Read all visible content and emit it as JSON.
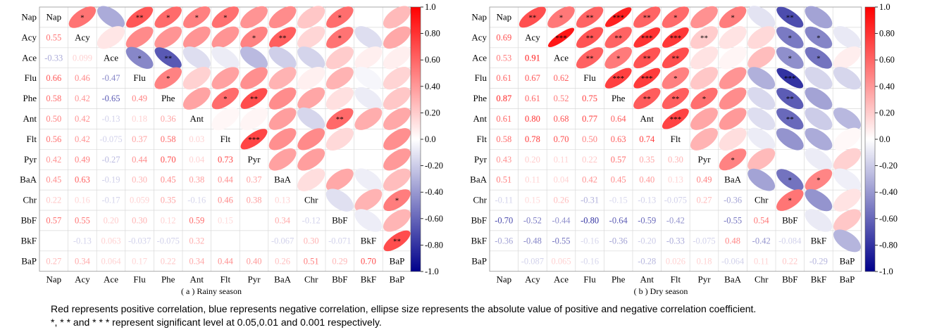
{
  "chart_data": [
    {
      "type": "heatmap",
      "subtype": "correlation-ellipse",
      "caption": "( a )  Rainy season",
      "variables": [
        "Nap",
        "Acy",
        "Ace",
        "Flu",
        "Phe",
        "Ant",
        "Flt",
        "Pyr",
        "BaA",
        "Chr",
        "BbF",
        "BkF",
        "BaP"
      ],
      "lower_values": [
        [
          null,
          null,
          null,
          null,
          null,
          null,
          null,
          null,
          null,
          null,
          null,
          null
        ],
        [
          0.55,
          null,
          null,
          null,
          null,
          null,
          null,
          null,
          null,
          null,
          null,
          null
        ],
        [
          -0.33,
          0.099,
          null,
          null,
          null,
          null,
          null,
          null,
          null,
          null,
          null,
          null
        ],
        [
          0.66,
          0.46,
          -0.47,
          null,
          null,
          null,
          null,
          null,
          null,
          null,
          null,
          null
        ],
        [
          0.58,
          0.42,
          -0.65,
          0.49,
          null,
          null,
          null,
          null,
          null,
          null,
          null,
          null
        ],
        [
          0.5,
          0.42,
          -0.13,
          0.18,
          0.36,
          null,
          null,
          null,
          null,
          null,
          null,
          null
        ],
        [
          0.56,
          0.42,
          -0.075,
          0.37,
          0.58,
          0.03,
          null,
          null,
          null,
          null,
          null,
          null
        ],
        [
          0.42,
          0.49,
          -0.27,
          0.44,
          0.7,
          0.04,
          0.73,
          null,
          null,
          null,
          null,
          null
        ],
        [
          0.45,
          0.63,
          -0.19,
          0.3,
          0.45,
          0.38,
          0.44,
          0.37,
          null,
          null,
          null,
          null
        ],
        [
          0.22,
          0.16,
          -0.17,
          0.059,
          0.35,
          -0.16,
          0.46,
          0.38,
          0.13,
          null,
          null,
          null
        ],
        [
          0.57,
          0.55,
          0.2,
          0.3,
          0.12,
          0.59,
          0.15,
          null,
          0.34,
          -0.12,
          null,
          null
        ],
        [
          null,
          -0.13,
          0.063,
          -0.037,
          -0.075,
          0.32,
          null,
          null,
          -0.067,
          0.3,
          -0.071,
          null
        ],
        [
          0.27,
          0.34,
          0.064,
          0.17,
          0.22,
          0.34,
          0.44,
          0.4,
          0.26,
          0.51,
          0.29,
          0.7
        ]
      ],
      "lower_labels": [
        [],
        [
          "0.55"
        ],
        [
          "-0.33",
          "0.099"
        ],
        [
          "0.66",
          "0.46",
          "-0.47"
        ],
        [
          "0.58",
          "0.42",
          "-0.65",
          "0.49"
        ],
        [
          "0.50",
          "0.42",
          "-0.13",
          "0.18",
          "0.36"
        ],
        [
          "0.56",
          "0.42",
          "-0.075",
          "0.37",
          "0.58",
          "0.03"
        ],
        [
          "0.42",
          "0.49",
          "-0.27",
          "0.44",
          "0.70",
          "0.04",
          "0.73"
        ],
        [
          "0.45",
          "0.63",
          "-0.19",
          "0.30",
          "0.45",
          "0.38",
          "0.44",
          "0.37"
        ],
        [
          "0.22",
          "0.16",
          "-0.17",
          "0.059",
          "0.35",
          "-0.16",
          "0.46",
          "0.38",
          "0.13"
        ],
        [
          "0.57",
          "0.55",
          "0.20",
          "0.30",
          "0.12",
          "0.59",
          "0.15",
          "",
          "0.34",
          "-0.12"
        ],
        [
          "",
          "-0.13",
          "0.063",
          "-0.037",
          "-0.075",
          "0.32",
          "",
          "",
          "-0.067",
          "0.30",
          "-0.071"
        ],
        [
          "0.27",
          "0.34",
          "0.064",
          "0.17",
          "0.22",
          "0.34",
          "0.44",
          "0.40",
          "0.26",
          "0.51",
          "0.29",
          "0.70"
        ]
      ],
      "stars": [
        {
          "r": 0,
          "c": 1,
          "s": "*"
        },
        {
          "r": 0,
          "c": 3,
          "s": "**"
        },
        {
          "r": 0,
          "c": 4,
          "s": "*"
        },
        {
          "r": 0,
          "c": 5,
          "s": "*"
        },
        {
          "r": 0,
          "c": 6,
          "s": "*"
        },
        {
          "r": 0,
          "c": 10,
          "s": "*"
        },
        {
          "r": 1,
          "c": 7,
          "s": "*"
        },
        {
          "r": 1,
          "c": 8,
          "s": "**"
        },
        {
          "r": 1,
          "c": 10,
          "s": "*"
        },
        {
          "r": 2,
          "c": 3,
          "s": "*"
        },
        {
          "r": 2,
          "c": 4,
          "s": "**"
        },
        {
          "r": 3,
          "c": 4,
          "s": "*"
        },
        {
          "r": 4,
          "c": 6,
          "s": "*"
        },
        {
          "r": 4,
          "c": 7,
          "s": "**"
        },
        {
          "r": 5,
          "c": 10,
          "s": "**"
        },
        {
          "r": 6,
          "c": 7,
          "s": "***"
        },
        {
          "r": 9,
          "c": 12,
          "s": "*"
        },
        {
          "r": 11,
          "c": 12,
          "s": "**"
        }
      ]
    },
    {
      "type": "heatmap",
      "subtype": "correlation-ellipse",
      "caption": "( b )  Dry season",
      "variables": [
        "Nap",
        "Acy",
        "Ace",
        "Flu",
        "Phe",
        "Ant",
        "Flt",
        "Pyr",
        "BaA",
        "Chr",
        "BbF",
        "BkF",
        "BaP"
      ],
      "lower_values": [
        [
          null,
          null,
          null,
          null,
          null,
          null,
          null,
          null,
          null,
          null,
          null,
          null
        ],
        [
          0.69,
          null,
          null,
          null,
          null,
          null,
          null,
          null,
          null,
          null,
          null,
          null
        ],
        [
          0.53,
          0.91,
          null,
          null,
          null,
          null,
          null,
          null,
          null,
          null,
          null,
          null
        ],
        [
          0.61,
          0.67,
          0.62,
          null,
          null,
          null,
          null,
          null,
          null,
          null,
          null,
          null
        ],
        [
          0.87,
          0.61,
          0.52,
          0.75,
          null,
          null,
          null,
          null,
          null,
          null,
          null,
          null
        ],
        [
          0.61,
          0.8,
          0.68,
          0.77,
          0.64,
          null,
          null,
          null,
          null,
          null,
          null,
          null
        ],
        [
          0.58,
          0.78,
          0.7,
          0.5,
          0.63,
          0.74,
          null,
          null,
          null,
          null,
          null,
          null
        ],
        [
          0.43,
          0.2,
          0.11,
          0.22,
          0.57,
          0.35,
          0.3,
          null,
          null,
          null,
          null,
          null
        ],
        [
          0.51,
          0.11,
          0.04,
          0.42,
          0.45,
          0.4,
          0.13,
          0.49,
          null,
          null,
          null,
          null
        ],
        [
          -0.11,
          0.15,
          0.26,
          -0.31,
          -0.15,
          -0.13,
          -0.075,
          0.27,
          -0.36,
          null,
          null,
          null
        ],
        [
          -0.7,
          -0.52,
          -0.44,
          -0.8,
          -0.64,
          -0.59,
          -0.42,
          null,
          -0.55,
          0.54,
          null,
          null
        ],
        [
          -0.36,
          -0.48,
          -0.55,
          -0.16,
          -0.36,
          -0.2,
          -0.33,
          -0.075,
          0.48,
          -0.42,
          -0.084,
          null
        ],
        [
          null,
          -0.087,
          0.065,
          -0.16,
          null,
          -0.28,
          0.026,
          0.18,
          -0.064,
          0.11,
          0.22,
          -0.29
        ]
      ],
      "lower_labels": [
        [],
        [
          "0.69"
        ],
        [
          "0.53",
          "0.91"
        ],
        [
          "0.61",
          "0.67",
          "0.62"
        ],
        [
          "0.87",
          "0.61",
          "0.52",
          "0.75"
        ],
        [
          "0.61",
          "0.80",
          "0.68",
          "0.77",
          "0.64"
        ],
        [
          "0.58",
          "0.78",
          "0.70",
          "0.50",
          "0.63",
          "0.74"
        ],
        [
          "0.43",
          "0.20",
          "0.11",
          "0.22",
          "0.57",
          "0.35",
          "0.30"
        ],
        [
          "0.51",
          "0.11",
          "0.04",
          "0.42",
          "0.45",
          "0.40",
          "0.13",
          "0.49"
        ],
        [
          "-0.11",
          "0.15",
          "0.26",
          "-0.31",
          "-0.15",
          "-0.13",
          "-0.075",
          "0.27",
          "-0.36"
        ],
        [
          "-0.70",
          "-0.52",
          "-0.44",
          "-0.80",
          "-0.64",
          "-0.59",
          "-0.42",
          "",
          "-0.55",
          "0.54"
        ],
        [
          "-0.36",
          "-0.48",
          "-0.55",
          "-0.16",
          "-0.36",
          "-0.20",
          "-0.33",
          "-0.075",
          "0.48",
          "-0.42",
          "-0.084"
        ],
        [
          "",
          "-0.087",
          "0.065",
          "-0.16",
          "",
          "-0.28",
          "0.026",
          "0.18",
          "-0.064",
          "0.11",
          "0.22",
          "-0.29"
        ]
      ],
      "stars": [
        {
          "r": 0,
          "c": 1,
          "s": "**"
        },
        {
          "r": 0,
          "c": 2,
          "s": "*"
        },
        {
          "r": 0,
          "c": 3,
          "s": "**"
        },
        {
          "r": 0,
          "c": 4,
          "s": "***"
        },
        {
          "r": 0,
          "c": 5,
          "s": "**"
        },
        {
          "r": 0,
          "c": 6,
          "s": "*"
        },
        {
          "r": 0,
          "c": 8,
          "s": "*"
        },
        {
          "r": 0,
          "c": 10,
          "s": "**"
        },
        {
          "r": 1,
          "c": 2,
          "s": "***"
        },
        {
          "r": 1,
          "c": 3,
          "s": "**"
        },
        {
          "r": 1,
          "c": 4,
          "s": "**"
        },
        {
          "r": 1,
          "c": 5,
          "s": "***"
        },
        {
          "r": 1,
          "c": 6,
          "s": "***"
        },
        {
          "r": 1,
          "c": 7,
          "s": "**"
        },
        {
          "r": 1,
          "c": 10,
          "s": "*"
        },
        {
          "r": 1,
          "c": 11,
          "s": "*"
        },
        {
          "r": 2,
          "c": 3,
          "s": "**"
        },
        {
          "r": 2,
          "c": 4,
          "s": "*"
        },
        {
          "r": 2,
          "c": 5,
          "s": "**"
        },
        {
          "r": 2,
          "c": 6,
          "s": "**"
        },
        {
          "r": 2,
          "c": 10,
          "s": "*"
        },
        {
          "r": 2,
          "c": 11,
          "s": "*"
        },
        {
          "r": 3,
          "c": 4,
          "s": "***"
        },
        {
          "r": 3,
          "c": 5,
          "s": "***"
        },
        {
          "r": 3,
          "c": 6,
          "s": "*"
        },
        {
          "r": 3,
          "c": 10,
          "s": "***"
        },
        {
          "r": 4,
          "c": 5,
          "s": "**"
        },
        {
          "r": 4,
          "c": 6,
          "s": "**"
        },
        {
          "r": 4,
          "c": 7,
          "s": "*"
        },
        {
          "r": 4,
          "c": 10,
          "s": "**"
        },
        {
          "r": 5,
          "c": 6,
          "s": "***"
        },
        {
          "r": 5,
          "c": 10,
          "s": "**"
        },
        {
          "r": 7,
          "c": 8,
          "s": "*"
        },
        {
          "r": 8,
          "c": 10,
          "s": "*"
        },
        {
          "r": 8,
          "c": 11,
          "s": "*"
        },
        {
          "r": 9,
          "c": 10,
          "s": "*"
        }
      ]
    }
  ],
  "colorbar": {
    "ticks": [
      "1.0",
      "0.80",
      "0.60",
      "0.40",
      "0.20",
      "0.0",
      "-0.20",
      "-0.40",
      "-0.60",
      "-0.80",
      "-1.0"
    ],
    "range": [
      -1,
      1
    ]
  },
  "colors": {
    "positive": "#ff0000",
    "negative": "#00008b",
    "neutral": "#ffffff"
  },
  "notes": {
    "line1": "Red represents positive correlation, blue represents negative correlation, ellipse size represents the absolute value of positive and negative correlation coefficient.",
    "line2": "*, * * and * * * represent significant level at 0.05,0.01 and 0.001 respectively."
  }
}
